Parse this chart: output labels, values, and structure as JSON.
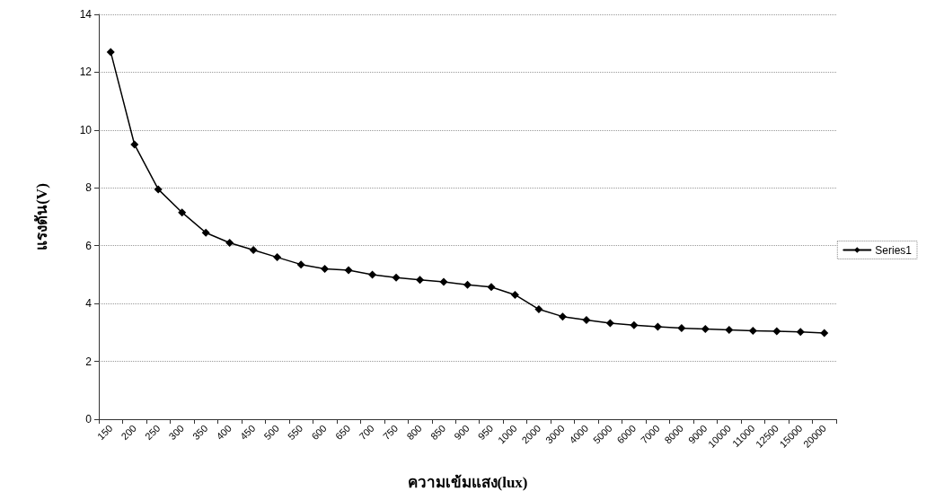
{
  "chart_data": {
    "type": "line",
    "xlabel": "ความเข้มแสง(lux)",
    "ylabel": "แรงดัน(V)",
    "categories": [
      "150",
      "200",
      "250",
      "300",
      "350",
      "400",
      "450",
      "500",
      "550",
      "600",
      "650",
      "700",
      "750",
      "800",
      "850",
      "900",
      "950",
      "1000",
      "2000",
      "3000",
      "4000",
      "5000",
      "6000",
      "7000",
      "8000",
      "9000",
      "10000",
      "11000",
      "12500",
      "15000",
      "20000"
    ],
    "series": [
      {
        "name": "Series1",
        "color": "#000000",
        "values": [
          12.7,
          9.5,
          7.95,
          7.15,
          6.45,
          6.1,
          5.85,
          5.6,
          5.35,
          5.2,
          5.15,
          5.0,
          4.9,
          4.82,
          4.75,
          4.65,
          4.57,
          4.3,
          3.8,
          3.55,
          3.43,
          3.32,
          3.25,
          3.2,
          3.15,
          3.12,
          3.09,
          3.06,
          3.04,
          3.02,
          2.98
        ]
      }
    ],
    "ylim": [
      0,
      14
    ],
    "yticks": [
      0,
      2,
      4,
      6,
      8,
      10,
      12,
      14
    ],
    "grid": "y",
    "legend": "right",
    "marker": "diamond",
    "line_style": "solid"
  }
}
